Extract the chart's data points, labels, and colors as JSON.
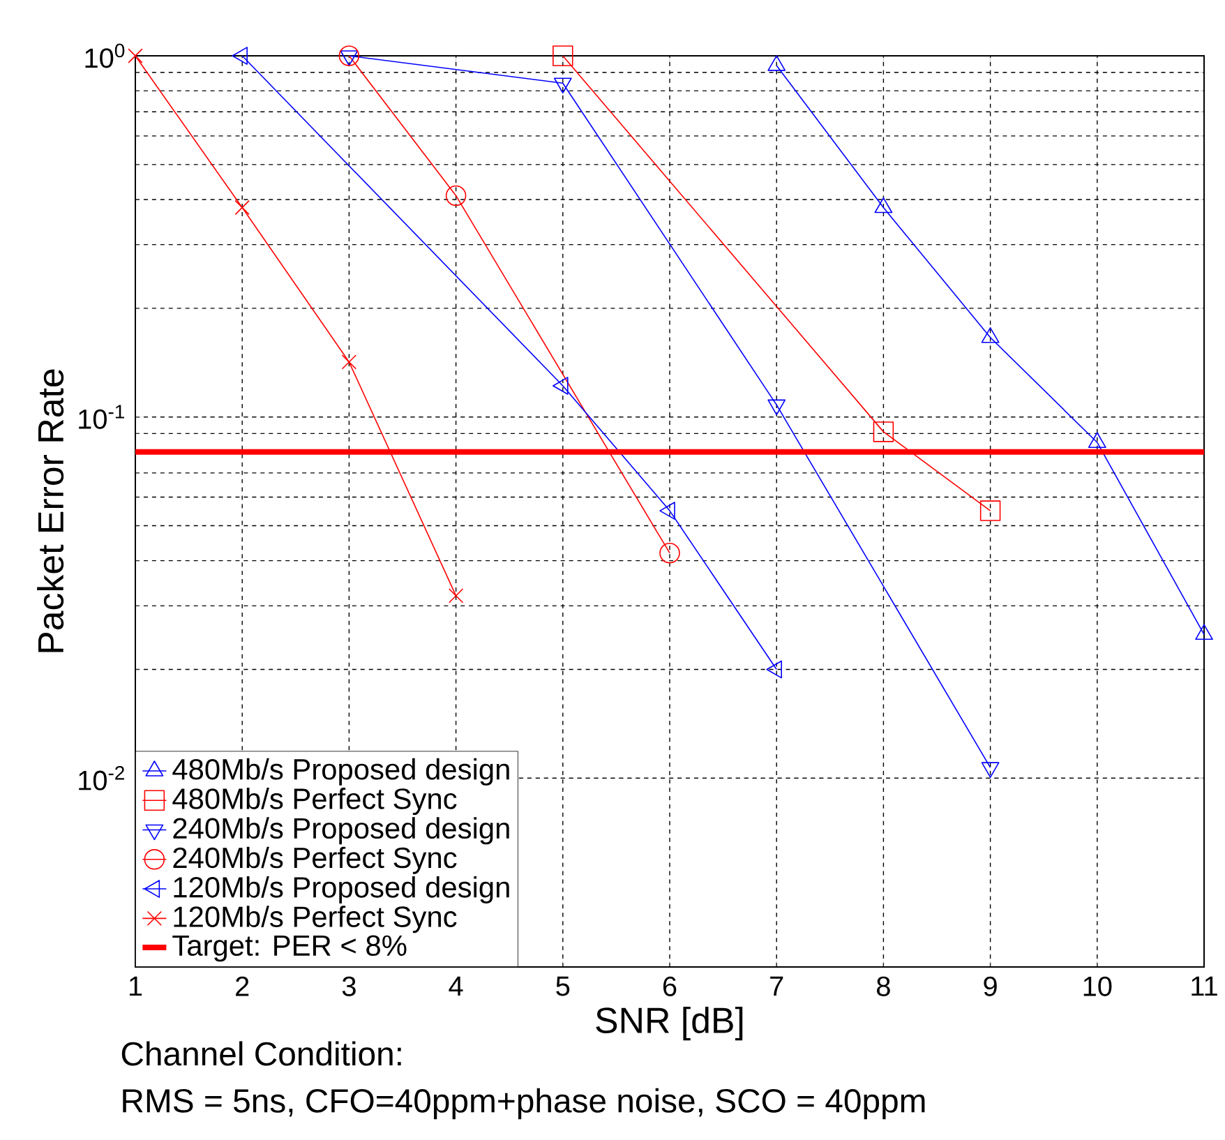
{
  "chart_data": {
    "type": "line",
    "xlabel": "SNR [dB]",
    "ylabel": "Packet Error Rate",
    "log": "y",
    "grid": true,
    "legend": "bottom left",
    "xlim": [
      1,
      11
    ],
    "xticks": [
      1,
      2,
      3,
      4,
      5,
      6,
      7,
      8,
      9,
      10,
      11
    ],
    "ylim": [
      0.003,
      1
    ],
    "yticks": [
      {
        "value": 0.01,
        "label": "10$^{-2}$"
      },
      {
        "value": 0.1,
        "label": "10$^{-1}$"
      },
      {
        "value": 1,
        "label": "10$^{0}$"
      }
    ],
    "series": [
      {
        "name": "480Mb/s Proposed design",
        "color": "#0000ff",
        "marker": "triangle",
        "x": [
          7,
          8,
          9,
          10,
          11
        ],
        "values": [
          0.94,
          0.38,
          0.166,
          0.085,
          0.025
        ]
      },
      {
        "name": "480Mb/s Perfect Sync",
        "color": "#ff0000",
        "marker": "square",
        "x": [
          5,
          8,
          9
        ],
        "values": [
          1.0,
          0.091,
          0.055
        ]
      },
      {
        "name": "240Mb/s Proposed design",
        "color": "#0000ff",
        "marker": "triangle-down",
        "x": [
          3,
          5,
          7,
          9
        ],
        "values": [
          1.0,
          0.84,
          0.108,
          0.0107
        ]
      },
      {
        "name": "240Mb/s Perfect Sync",
        "color": "#ff0000",
        "marker": "circle",
        "x": [
          3,
          4,
          6
        ],
        "values": [
          1.0,
          0.41,
          0.042
        ]
      },
      {
        "name": "120Mb/s Proposed design",
        "color": "#0000ff",
        "marker": "triangle-left",
        "x": [
          2,
          5,
          6,
          7
        ],
        "values": [
          1.0,
          0.122,
          0.055,
          0.02
        ]
      },
      {
        "name": "120Mb/s Perfect Sync",
        "color": "#ff0000",
        "marker": "cross",
        "x": [
          1,
          2,
          3,
          4
        ],
        "values": [
          1.0,
          0.38,
          0.142,
          0.032
        ]
      }
    ],
    "ref_lines": [
      {
        "axis": "y",
        "value": 0.08,
        "label": "Target: PER < 8%",
        "color": "#ff0000"
      }
    ],
    "annotations": [
      "Channel Condition:",
      "RMS = 5ns, CFO=40ppm+phase noise, SCO = 40ppm"
    ]
  }
}
